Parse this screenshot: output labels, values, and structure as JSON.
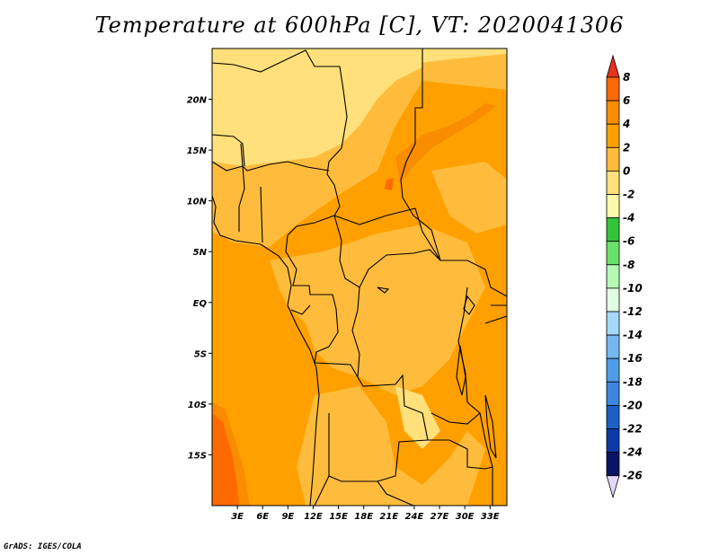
{
  "title": "Temperature at 600hPa [C], VT: 2020041306",
  "credit": "GrADS: IGES/COLA",
  "map": {
    "lon_range": [
      0,
      35
    ],
    "lat_range": [
      -20,
      25
    ],
    "lat_ticks": [
      {
        "value": 20,
        "label": "20N"
      },
      {
        "value": 15,
        "label": "15N"
      },
      {
        "value": 10,
        "label": "10N"
      },
      {
        "value": 5,
        "label": "5N"
      },
      {
        "value": 0,
        "label": "EQ"
      },
      {
        "value": -5,
        "label": "5S"
      },
      {
        "value": -10,
        "label": "10S"
      },
      {
        "value": -15,
        "label": "15S"
      }
    ],
    "lon_ticks": [
      {
        "value": 3,
        "label": "3E"
      },
      {
        "value": 6,
        "label": "6E"
      },
      {
        "value": 9,
        "label": "9E"
      },
      {
        "value": 12,
        "label": "12E"
      },
      {
        "value": 15,
        "label": "15E"
      },
      {
        "value": 18,
        "label": "18E"
      },
      {
        "value": 21,
        "label": "21E"
      },
      {
        "value": 24,
        "label": "24E"
      },
      {
        "value": 27,
        "label": "27E"
      },
      {
        "value": 30,
        "label": "30E"
      },
      {
        "value": 33,
        "label": "33E"
      }
    ]
  },
  "colorbar": {
    "labels": [
      "8",
      "6",
      "4",
      "2",
      "0",
      "-2",
      "-4",
      "-6",
      "-8",
      "-10",
      "-12",
      "-14",
      "-16",
      "-18",
      "-20",
      "-22",
      "-24",
      "-26"
    ],
    "colors": [
      "#e6321e",
      "#ff6a00",
      "#fa8c00",
      "#ffa000",
      "#ffbc3c",
      "#ffe07a",
      "#fffaaa",
      "#33c43a",
      "#6ae26a",
      "#b4fab4",
      "#e1fde1",
      "#a6d8f7",
      "#74b8f0",
      "#4f9de6",
      "#3c86e0",
      "#1c60c6",
      "#0a3aa8",
      "#0a1464"
    ],
    "bottom_triangle_color": "#e1d8fa"
  }
}
